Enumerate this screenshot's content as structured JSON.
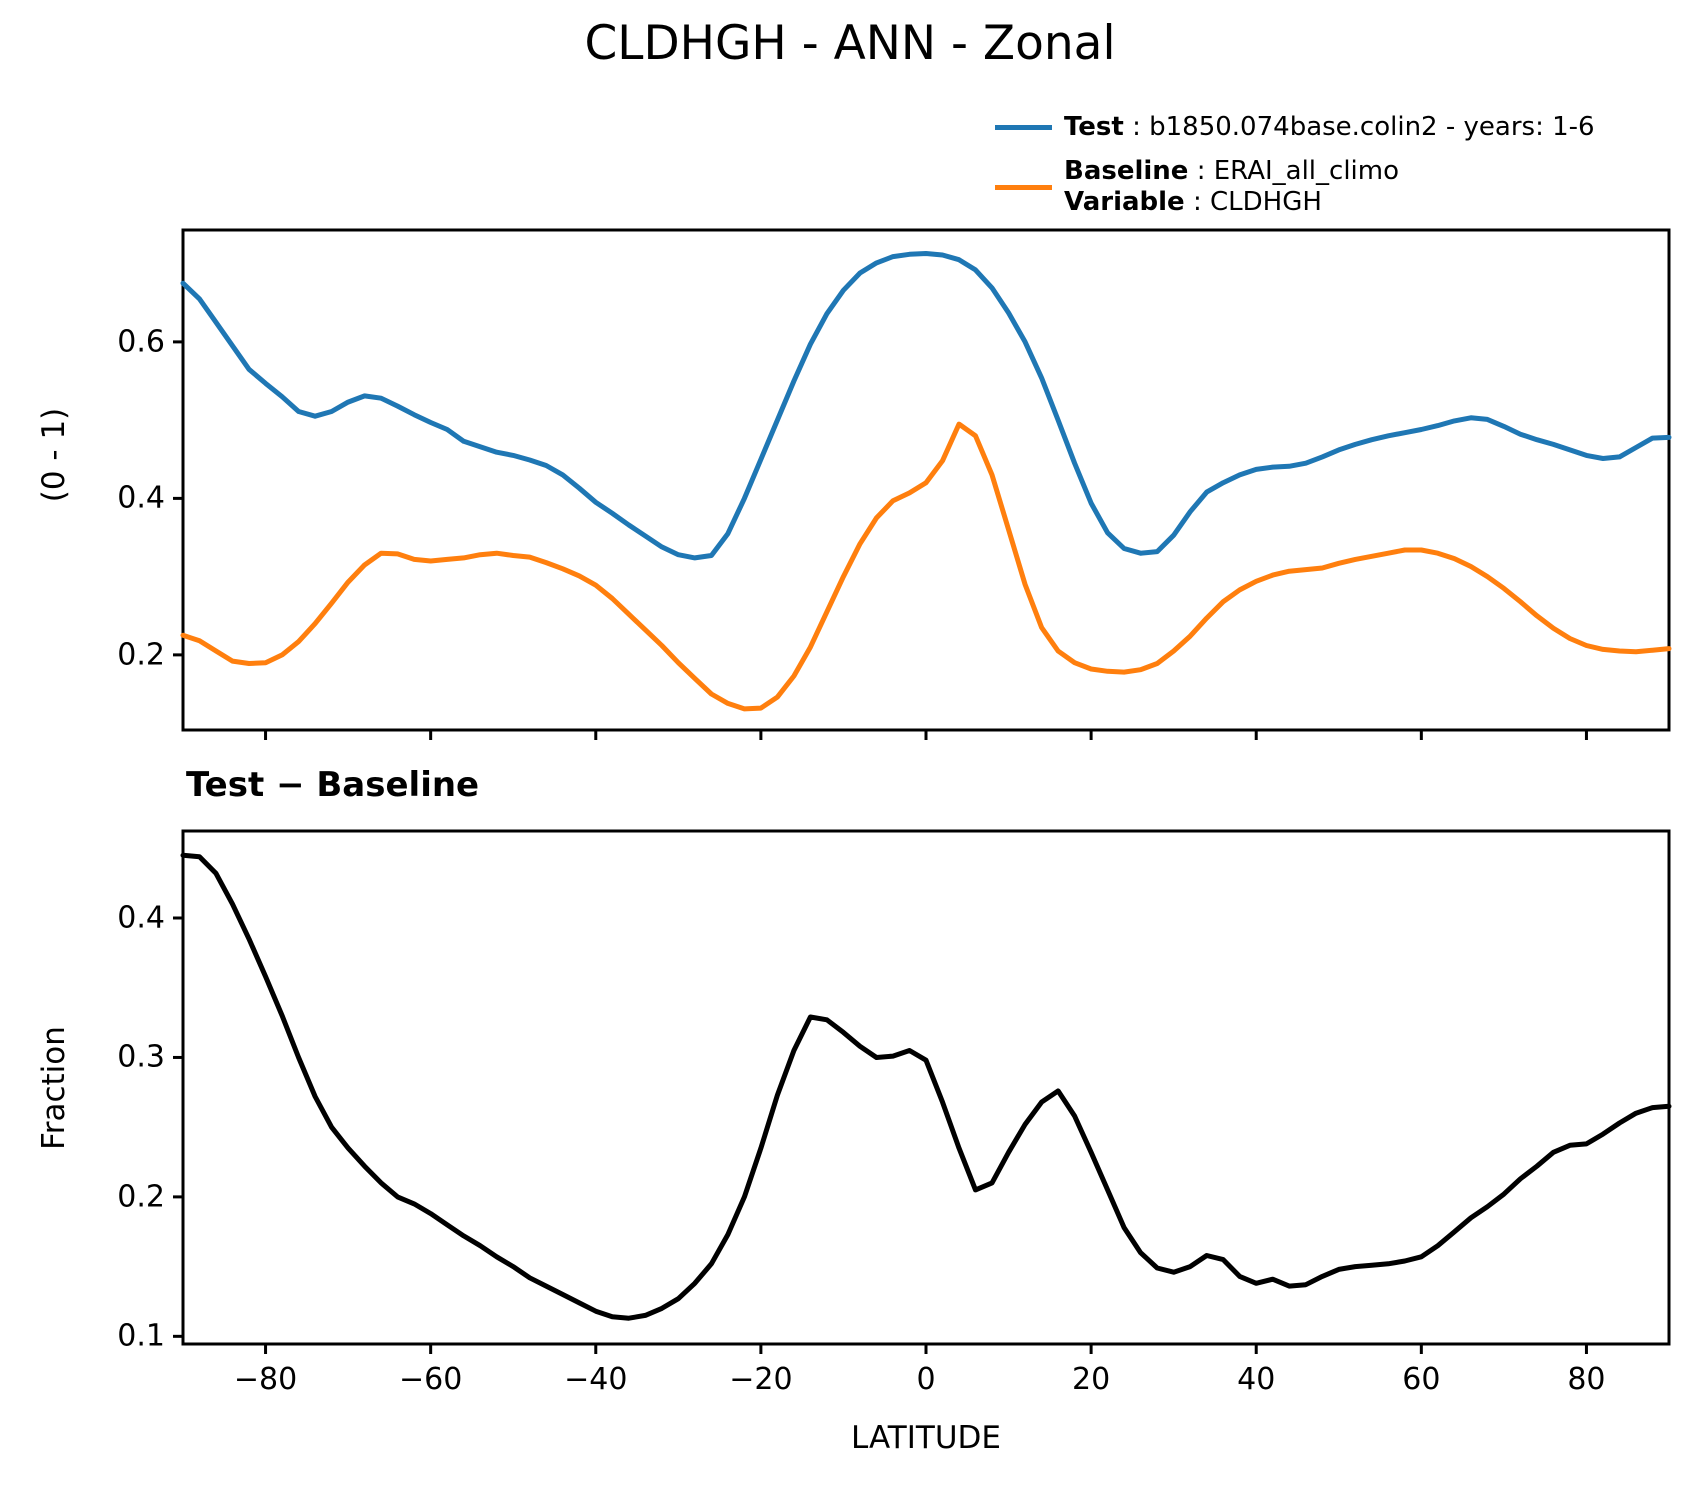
{
  "title": "CLDHGH - ANN - Zonal",
  "legend": {
    "sep": " : ",
    "test_label": "Test",
    "test_value": "b1850.074base.colin2 - years: 1-6",
    "baseline_label": "Baseline",
    "baseline_value": "ERAI_all_climo",
    "variable_label": "Variable",
    "variable_value": "CLDHGH"
  },
  "panel1": {
    "ylabel": "(0 - 1)"
  },
  "panel2": {
    "subtitle": "Test − Baseline",
    "ylabel": "Fraction",
    "xlabel": "LATITUDE"
  },
  "colors": {
    "test": "#1f77b4",
    "baseline": "#ff7f0e",
    "diff": "#000000",
    "frame": "#000000"
  },
  "chart_data": [
    {
      "type": "line",
      "panel": "p1",
      "title": "CLDHGH - ANN - Zonal",
      "ylabel": "(0 - 1)",
      "xlim": [
        -90,
        90
      ],
      "ylim": [
        0.104,
        0.743
      ],
      "yticks": [
        0.2,
        0.4,
        0.6
      ],
      "xticks": [
        -80,
        -60,
        -40,
        -20,
        0,
        20,
        40,
        60,
        80
      ],
      "show_xticklabels": false,
      "grid": false,
      "legend_position": "upper right outside",
      "x": [
        -90,
        -88,
        -86,
        -84,
        -82,
        -80,
        -78,
        -76,
        -74,
        -72,
        -70,
        -68,
        -66,
        -64,
        -62,
        -60,
        -58,
        -56,
        -54,
        -52,
        -50,
        -48,
        -46,
        -44,
        -42,
        -40,
        -38,
        -36,
        -34,
        -32,
        -30,
        -28,
        -26,
        -24,
        -22,
        -20,
        -18,
        -16,
        -14,
        -12,
        -10,
        -8,
        -6,
        -4,
        -2,
        0,
        2,
        4,
        6,
        8,
        10,
        12,
        14,
        16,
        18,
        20,
        22,
        24,
        26,
        28,
        30,
        32,
        34,
        36,
        38,
        40,
        42,
        44,
        46,
        48,
        50,
        52,
        54,
        56,
        58,
        60,
        62,
        64,
        66,
        68,
        70,
        72,
        74,
        76,
        78,
        80,
        82,
        84,
        86,
        88,
        90
      ],
      "series": [
        {
          "name": "Test",
          "values": [
            0.675,
            0.655,
            0.625,
            0.595,
            0.565,
            0.547,
            0.53,
            0.511,
            0.505,
            0.511,
            0.523,
            0.531,
            0.528,
            0.518,
            0.507,
            0.497,
            0.488,
            0.473,
            0.466,
            0.459,
            0.455,
            0.449,
            0.442,
            0.43,
            0.413,
            0.395,
            0.381,
            0.366,
            0.352,
            0.338,
            0.328,
            0.324,
            0.327,
            0.355,
            0.4,
            0.45,
            0.5,
            0.55,
            0.597,
            0.636,
            0.666,
            0.688,
            0.701,
            0.709,
            0.712,
            0.713,
            0.711,
            0.705,
            0.692,
            0.669,
            0.637,
            0.6,
            0.554,
            0.5,
            0.445,
            0.394,
            0.356,
            0.336,
            0.33,
            0.332,
            0.353,
            0.383,
            0.408,
            0.42,
            0.43,
            0.437,
            0.44,
            0.441,
            0.445,
            0.453,
            0.462,
            0.469,
            0.475,
            0.48,
            0.484,
            0.488,
            0.493,
            0.499,
            0.503,
            0.501,
            0.492,
            0.482,
            0.475,
            0.469,
            0.462,
            0.455,
            0.451,
            0.453,
            0.465,
            0.477,
            0.478
          ]
        },
        {
          "name": "Baseline",
          "values": [
            0.225,
            0.218,
            0.205,
            0.192,
            0.189,
            0.19,
            0.2,
            0.217,
            0.24,
            0.266,
            0.293,
            0.315,
            0.33,
            0.329,
            0.322,
            0.32,
            0.322,
            0.324,
            0.328,
            0.33,
            0.327,
            0.325,
            0.318,
            0.31,
            0.301,
            0.289,
            0.272,
            0.252,
            0.232,
            0.212,
            0.19,
            0.17,
            0.15,
            0.138,
            0.131,
            0.132,
            0.146,
            0.173,
            0.21,
            0.255,
            0.3,
            0.342,
            0.375,
            0.397,
            0.407,
            0.42,
            0.448,
            0.495,
            0.48,
            0.43,
            0.36,
            0.29,
            0.235,
            0.205,
            0.19,
            0.182,
            0.179,
            0.178,
            0.181,
            0.189,
            0.205,
            0.224,
            0.247,
            0.268,
            0.283,
            0.294,
            0.302,
            0.307,
            0.309,
            0.311,
            0.317,
            0.322,
            0.326,
            0.33,
            0.334,
            0.334,
            0.33,
            0.323,
            0.313,
            0.3,
            0.285,
            0.268,
            0.25,
            0.234,
            0.221,
            0.212,
            0.207,
            0.205,
            0.204,
            0.206,
            0.208
          ]
        }
      ]
    },
    {
      "type": "line",
      "panel": "p2",
      "title": "Test − Baseline",
      "ylabel": "Fraction",
      "xlabel": "LATITUDE",
      "xlim": [
        -90,
        90
      ],
      "ylim": [
        0.0945,
        0.4624
      ],
      "yticks": [
        0.1,
        0.2,
        0.3,
        0.4
      ],
      "xticks": [
        -80,
        -60,
        -40,
        -20,
        0,
        20,
        40,
        60,
        80
      ],
      "show_xticklabels": true,
      "grid": false,
      "x": [
        -90,
        -88,
        -86,
        -84,
        -82,
        -80,
        -78,
        -76,
        -74,
        -72,
        -70,
        -68,
        -66,
        -64,
        -62,
        -60,
        -58,
        -56,
        -54,
        -52,
        -50,
        -48,
        -46,
        -44,
        -42,
        -40,
        -38,
        -36,
        -34,
        -32,
        -30,
        -28,
        -26,
        -24,
        -22,
        -20,
        -18,
        -16,
        -14,
        -12,
        -10,
        -8,
        -6,
        -4,
        -2,
        0,
        2,
        4,
        6,
        8,
        10,
        12,
        14,
        16,
        18,
        20,
        22,
        24,
        26,
        28,
        30,
        32,
        34,
        36,
        38,
        40,
        42,
        44,
        46,
        48,
        50,
        52,
        54,
        56,
        58,
        60,
        62,
        64,
        66,
        68,
        70,
        72,
        74,
        76,
        78,
        80,
        82,
        84,
        86,
        88,
        90
      ],
      "series": [
        {
          "name": "Test minus Baseline",
          "values": [
            0.445,
            0.444,
            0.432,
            0.41,
            0.385,
            0.358,
            0.33,
            0.3,
            0.272,
            0.25,
            0.235,
            0.222,
            0.21,
            0.2,
            0.195,
            0.188,
            0.18,
            0.172,
            0.165,
            0.157,
            0.15,
            0.142,
            0.136,
            0.13,
            0.124,
            0.118,
            0.114,
            0.113,
            0.115,
            0.12,
            0.127,
            0.138,
            0.152,
            0.173,
            0.2,
            0.235,
            0.273,
            0.305,
            0.329,
            0.327,
            0.318,
            0.308,
            0.3,
            0.301,
            0.305,
            0.298,
            0.268,
            0.235,
            0.205,
            0.21,
            0.232,
            0.252,
            0.268,
            0.276,
            0.258,
            0.232,
            0.205,
            0.178,
            0.16,
            0.149,
            0.146,
            0.15,
            0.158,
            0.155,
            0.143,
            0.138,
            0.141,
            0.136,
            0.137,
            0.143,
            0.148,
            0.15,
            0.151,
            0.152,
            0.154,
            0.157,
            0.165,
            0.175,
            0.185,
            0.193,
            0.202,
            0.213,
            0.222,
            0.232,
            0.237,
            0.238,
            0.245,
            0.253,
            0.26,
            0.264,
            0.265
          ]
        }
      ]
    }
  ]
}
